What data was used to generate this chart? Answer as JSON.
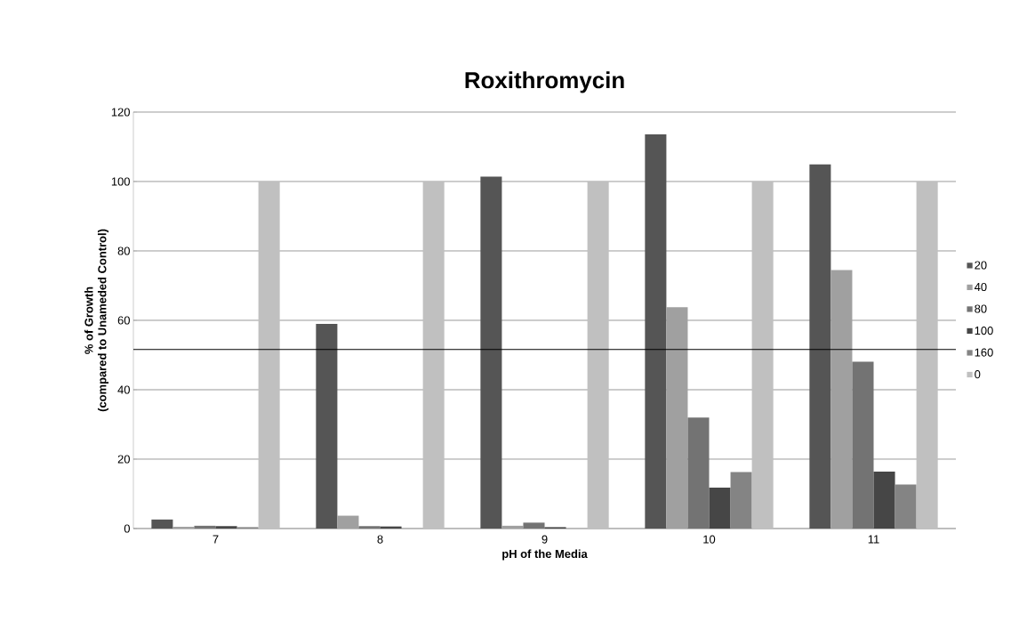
{
  "chart_data": {
    "type": "bar",
    "title": "Roxithromycin",
    "xlabel": "pH of the Media",
    "ylabel": "% of Growth\n(compared to Unameded Control)",
    "categories": [
      "7",
      "8",
      "9",
      "10",
      "11"
    ],
    "series": [
      {
        "name": "20",
        "color": "#555555",
        "values": [
          2.6,
          59.0,
          101.4,
          113.6,
          104.9
        ]
      },
      {
        "name": "40",
        "color": "#a0a0a0",
        "values": [
          0.5,
          3.7,
          0.8,
          63.8,
          74.5
        ]
      },
      {
        "name": "80",
        "color": "#737373",
        "values": [
          0.8,
          0.7,
          1.7,
          32,
          48.1
        ]
      },
      {
        "name": "100",
        "color": "#464646",
        "values": [
          0.7,
          0.6,
          0.4,
          11.8,
          16.4
        ]
      },
      {
        "name": "160",
        "color": "#848484",
        "values": [
          0.4,
          0,
          0,
          16.3,
          12.7
        ]
      },
      {
        "name": "0",
        "color": "#c0c0c0",
        "values": [
          100,
          100,
          100,
          100,
          100
        ]
      }
    ],
    "ylim": [
      0,
      120
    ],
    "yticks": [
      0,
      20,
      40,
      60,
      80,
      100,
      120
    ],
    "grid": "y",
    "legend": "right",
    "ref_lines": [
      {
        "axis": "y",
        "value": 51.6,
        "color": "#000000"
      }
    ]
  }
}
